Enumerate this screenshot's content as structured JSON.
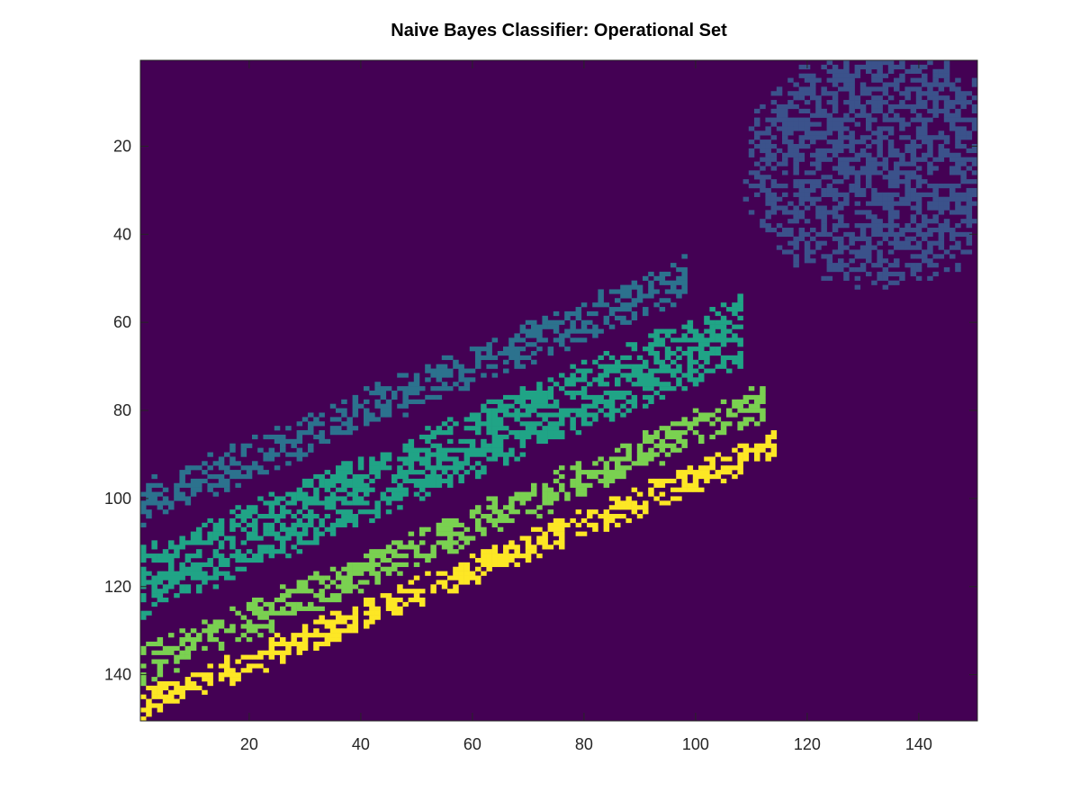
{
  "chart_data": {
    "type": "heatmap",
    "title": "Naive Bayes Classifier: Operational Set",
    "xlabel": "",
    "ylabel": "",
    "x_range": [
      1,
      150
    ],
    "y_range": [
      1,
      150
    ],
    "y_reversed": true,
    "x_ticks": [
      20,
      40,
      60,
      80,
      100,
      120,
      140
    ],
    "y_ticks": [
      20,
      40,
      60,
      80,
      100,
      120,
      140
    ],
    "grid": false,
    "colormap": "viridis",
    "background_color": "#440154",
    "class_regions": [
      {
        "class": 2,
        "color": "#3b528b",
        "shape": "blob",
        "center": [
          133,
          25
        ],
        "rx": 25,
        "ry": 28,
        "density": 0.55
      },
      {
        "class": 3,
        "color": "#2c728e",
        "shape": "band",
        "x_from": 1,
        "x_to": 98,
        "y_center_at_x_from": 101,
        "y_center_at_x_to": 50,
        "width": 10,
        "density": 0.55
      },
      {
        "class": 4,
        "color": "#20a486",
        "shape": "band",
        "x_from": 1,
        "x_to": 108,
        "y_center_at_x_from": 119,
        "y_center_at_x_to": 62,
        "width": 16,
        "density": 0.6
      },
      {
        "class": 5,
        "color": "#7ad151",
        "shape": "band",
        "x_from": 1,
        "x_to": 112,
        "y_center_at_x_from": 138,
        "y_center_at_x_to": 78,
        "width": 9,
        "density": 0.55
      },
      {
        "class": 6,
        "color": "#fde725",
        "shape": "band",
        "x_from": 1,
        "x_to": 114,
        "y_center_at_x_from": 147,
        "y_center_at_x_to": 88,
        "width": 7,
        "density": 0.6
      }
    ]
  }
}
